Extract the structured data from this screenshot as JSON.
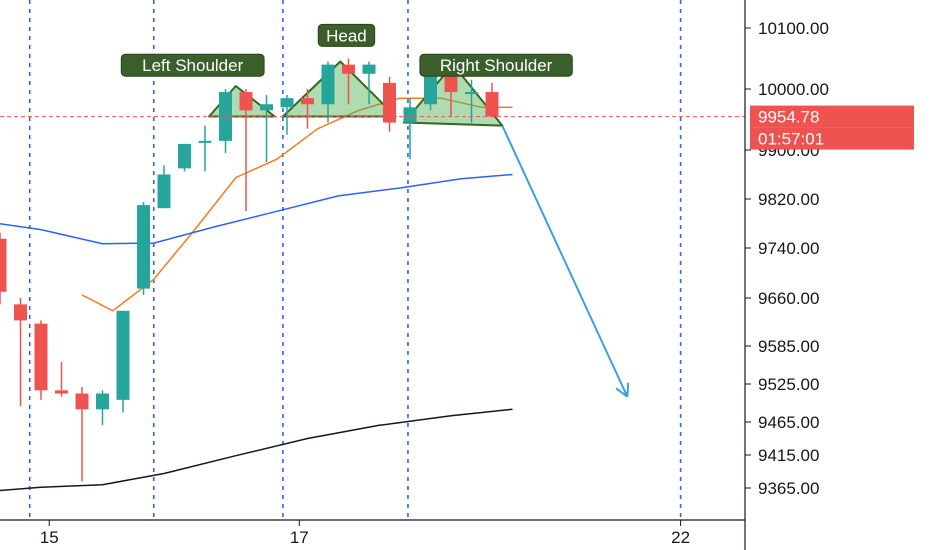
{
  "chart_data": {
    "type": "candlestick",
    "price_scale": {
      "ticks": [
        {
          "value": 10100,
          "label": "10100.00"
        },
        {
          "value": 10000,
          "label": "10000.00"
        },
        {
          "value": 9900,
          "label": "9900.00"
        },
        {
          "value": 9820,
          "label": "9820.00"
        },
        {
          "value": 9740,
          "label": "9740.00"
        },
        {
          "value": 9660,
          "label": "9660.00"
        },
        {
          "value": 9585,
          "label": "9585.00"
        },
        {
          "value": 9525,
          "label": "9525.00"
        },
        {
          "value": 9465,
          "label": "9465.00"
        },
        {
          "value": 9415,
          "label": "9415.00"
        },
        {
          "value": 9365,
          "label": "9365.00"
        }
      ]
    },
    "time_scale": {
      "ticks": [
        {
          "bar": 2.4,
          "label": "15"
        },
        {
          "bar": 14.6,
          "label": "17"
        },
        {
          "bar": 33.2,
          "label": "22"
        }
      ],
      "separator_bars": [
        1.45,
        7.5,
        13.8,
        19.9,
        33.2
      ]
    },
    "candles": [
      {
        "o": 9755,
        "h": 9765,
        "l": 9650,
        "c": 9670
      },
      {
        "o": 9650,
        "h": 9660,
        "l": 9490,
        "c": 9625
      },
      {
        "o": 9620,
        "h": 9625,
        "l": 9500,
        "c": 9515
      },
      {
        "o": 9515,
        "h": 9560,
        "l": 9505,
        "c": 9510
      },
      {
        "o": 9510,
        "h": 9520,
        "l": 9375,
        "c": 9485
      },
      {
        "o": 9485,
        "h": 9515,
        "l": 9460,
        "c": 9510
      },
      {
        "o": 9500,
        "h": 9640,
        "l": 9480,
        "c": 9640
      },
      {
        "o": 9675,
        "h": 9815,
        "l": 9665,
        "c": 9810
      },
      {
        "o": 9805,
        "h": 9875,
        "l": 9805,
        "c": 9860
      },
      {
        "o": 9870,
        "h": 9910,
        "l": 9865,
        "c": 9910
      },
      {
        "o": 9915,
        "h": 9940,
        "l": 9865,
        "c": 9915
      },
      {
        "o": 9915,
        "h": 10000,
        "l": 9895,
        "c": 9995
      },
      {
        "o": 9995,
        "h": 10000,
        "l": 9800,
        "c": 9965
      },
      {
        "o": 9965,
        "h": 9990,
        "l": 9880,
        "c": 9975
      },
      {
        "o": 9970,
        "h": 9990,
        "l": 9925,
        "c": 9985
      },
      {
        "o": 9985,
        "h": 10000,
        "l": 9935,
        "c": 9975
      },
      {
        "o": 9975,
        "h": 10045,
        "l": 9945,
        "c": 10040
      },
      {
        "o": 10040,
        "h": 10050,
        "l": 9975,
        "c": 10025
      },
      {
        "o": 10025,
        "h": 10045,
        "l": 9975,
        "c": 10040
      },
      {
        "o": 10010,
        "h": 10020,
        "l": 9930,
        "c": 9945
      },
      {
        "o": 9945,
        "h": 9985,
        "l": 9885,
        "c": 9970
      },
      {
        "o": 9975,
        "h": 10040,
        "l": 9965,
        "c": 10035
      },
      {
        "o": 10035,
        "h": 10040,
        "l": 9955,
        "c": 9995
      },
      {
        "o": 9995,
        "h": 10015,
        "l": 9945,
        "c": 9995
      },
      {
        "o": 9995,
        "h": 10010,
        "l": 9960,
        "c": 9955
      }
    ],
    "moving_averages": [
      {
        "color": "#f57c20",
        "points": [
          [
            4.0,
            9665
          ],
          [
            5.5,
            9640
          ],
          [
            7.5,
            9690
          ],
          [
            9.5,
            9770
          ],
          [
            11.5,
            9855
          ],
          [
            13.5,
            9885
          ],
          [
            15.5,
            9935
          ],
          [
            17.5,
            9965
          ],
          [
            19.5,
            9985
          ],
          [
            21.5,
            9985
          ],
          [
            23.5,
            9970
          ],
          [
            25.0,
            9970
          ]
        ]
      },
      {
        "color": "#2962ff",
        "points": [
          [
            -0.5,
            9782
          ],
          [
            2.0,
            9770
          ],
          [
            5.0,
            9747
          ],
          [
            7.5,
            9748
          ],
          [
            10.5,
            9775
          ],
          [
            13.5,
            9800
          ],
          [
            16.5,
            9825
          ],
          [
            19.5,
            9838
          ],
          [
            22.5,
            9853
          ],
          [
            25.0,
            9860
          ]
        ]
      },
      {
        "color": "#131722",
        "points": [
          [
            -0.5,
            9360
          ],
          [
            2.0,
            9366
          ],
          [
            5.0,
            9370
          ],
          [
            8.0,
            9387
          ],
          [
            11.5,
            9414
          ],
          [
            15.0,
            9440
          ],
          [
            18.5,
            9460
          ],
          [
            22.0,
            9475
          ],
          [
            25.0,
            9485
          ]
        ]
      }
    ],
    "pattern": {
      "fill_color": "#4caf50",
      "outline_color": "#33691e",
      "triangles": [
        [
          [
            10.2,
            9955
          ],
          [
            11.5,
            10005
          ],
          [
            13.4,
            9955
          ]
        ],
        [
          [
            13.8,
            9955
          ],
          [
            16.6,
            10045
          ],
          [
            19.3,
            9955
          ]
        ],
        [
          [
            19.7,
            9945
          ],
          [
            22.1,
            10040
          ],
          [
            24.5,
            9940
          ]
        ]
      ],
      "labels": [
        {
          "text": "Left Shoulder",
          "bar": 9.4,
          "value": 10039
        },
        {
          "text": "Head",
          "bar": 16.9,
          "value": 10088
        },
        {
          "text": "Right Shoulder",
          "bar": 24.2,
          "value": 10039
        }
      ]
    },
    "projection": {
      "color": "#3d9fe0",
      "from": {
        "bar": 24.5,
        "value": 9940
      },
      "to": {
        "bar": 30.6,
        "value": 9505
      }
    },
    "current_price": {
      "value": 9954.78,
      "label": "9954.78",
      "countdown": "01:57:01",
      "color": "#ef5350"
    }
  }
}
